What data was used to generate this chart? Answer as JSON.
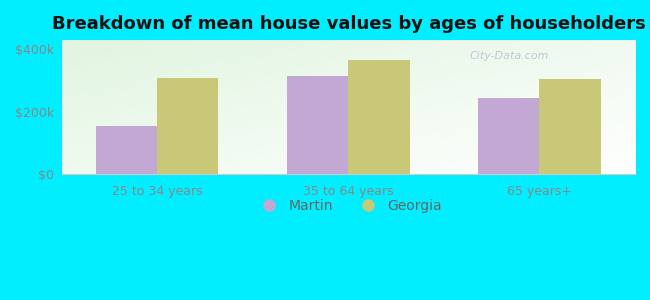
{
  "title": "Breakdown of mean house values by ages of householders",
  "categories": [
    "25 to 34 years",
    "35 to 64 years",
    "65 years+"
  ],
  "martin_values": [
    155000,
    315000,
    245000
  ],
  "georgia_values": [
    310000,
    365000,
    305000
  ],
  "martin_color": "#c4a8d4",
  "georgia_color": "#c8c878",
  "bar_width": 0.32,
  "ylim": [
    0,
    430000
  ],
  "yticks": [
    0,
    200000,
    400000
  ],
  "ytick_labels": [
    "$0",
    "$200k",
    "$400k"
  ],
  "bg_color": "#00eeff",
  "legend_martin": "Martin",
  "legend_georgia": "Georgia",
  "title_fontsize": 13,
  "tick_fontsize": 9,
  "legend_fontsize": 10,
  "watermark": "City-Data.com"
}
